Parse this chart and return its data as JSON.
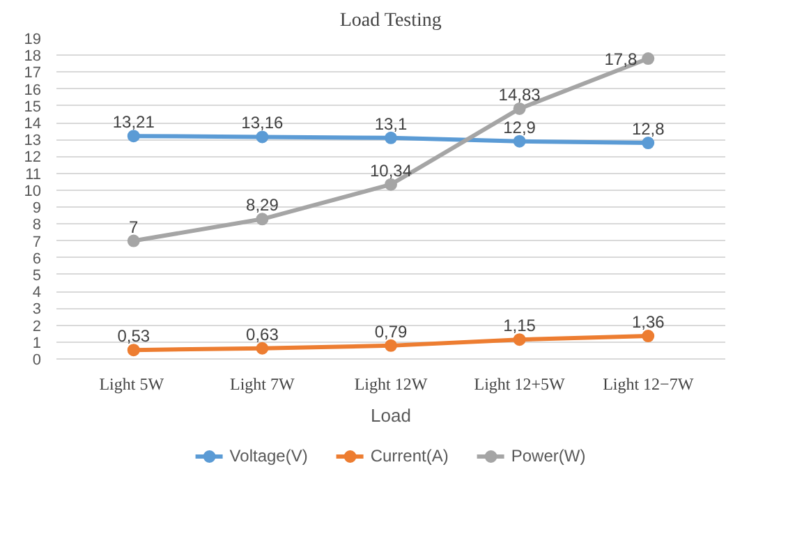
{
  "chart_data": {
    "type": "line",
    "title": "Load Testing",
    "xlabel": "Load",
    "categories": [
      "Light  5W",
      "Light 7W",
      "Light 12W",
      "Light 12+5W",
      "Light 12−7W"
    ],
    "series": [
      {
        "name": "Voltage(V)",
        "color": "#5b9bd5",
        "values": [
          13.21,
          13.16,
          13.1,
          12.9,
          12.8
        ],
        "value_labels": [
          "13,21",
          "13,16",
          "13,1",
          "12,9",
          "12,8"
        ]
      },
      {
        "name": "Current(A)",
        "color": "#ed7d31",
        "values": [
          0.53,
          0.63,
          0.79,
          1.15,
          1.36
        ],
        "value_labels": [
          "0,53",
          "0,63",
          "0,79",
          "1,15",
          "1,36"
        ]
      },
      {
        "name": "Power(W)",
        "color": "#a5a5a5",
        "values": [
          7,
          8.29,
          10.34,
          14.83,
          17.8
        ],
        "value_labels": [
          "7",
          "8,29",
          "10,34",
          "14,83",
          "17,8"
        ]
      }
    ],
    "ylim": [
      0,
      19
    ],
    "yticks": [
      0,
      1,
      2,
      3,
      4,
      5,
      6,
      7,
      8,
      9,
      10,
      11,
      12,
      13,
      14,
      15,
      16,
      17,
      18,
      19
    ],
    "grid": "y",
    "legend": "bottom",
    "marker": "circle",
    "line_style": "solid"
  }
}
